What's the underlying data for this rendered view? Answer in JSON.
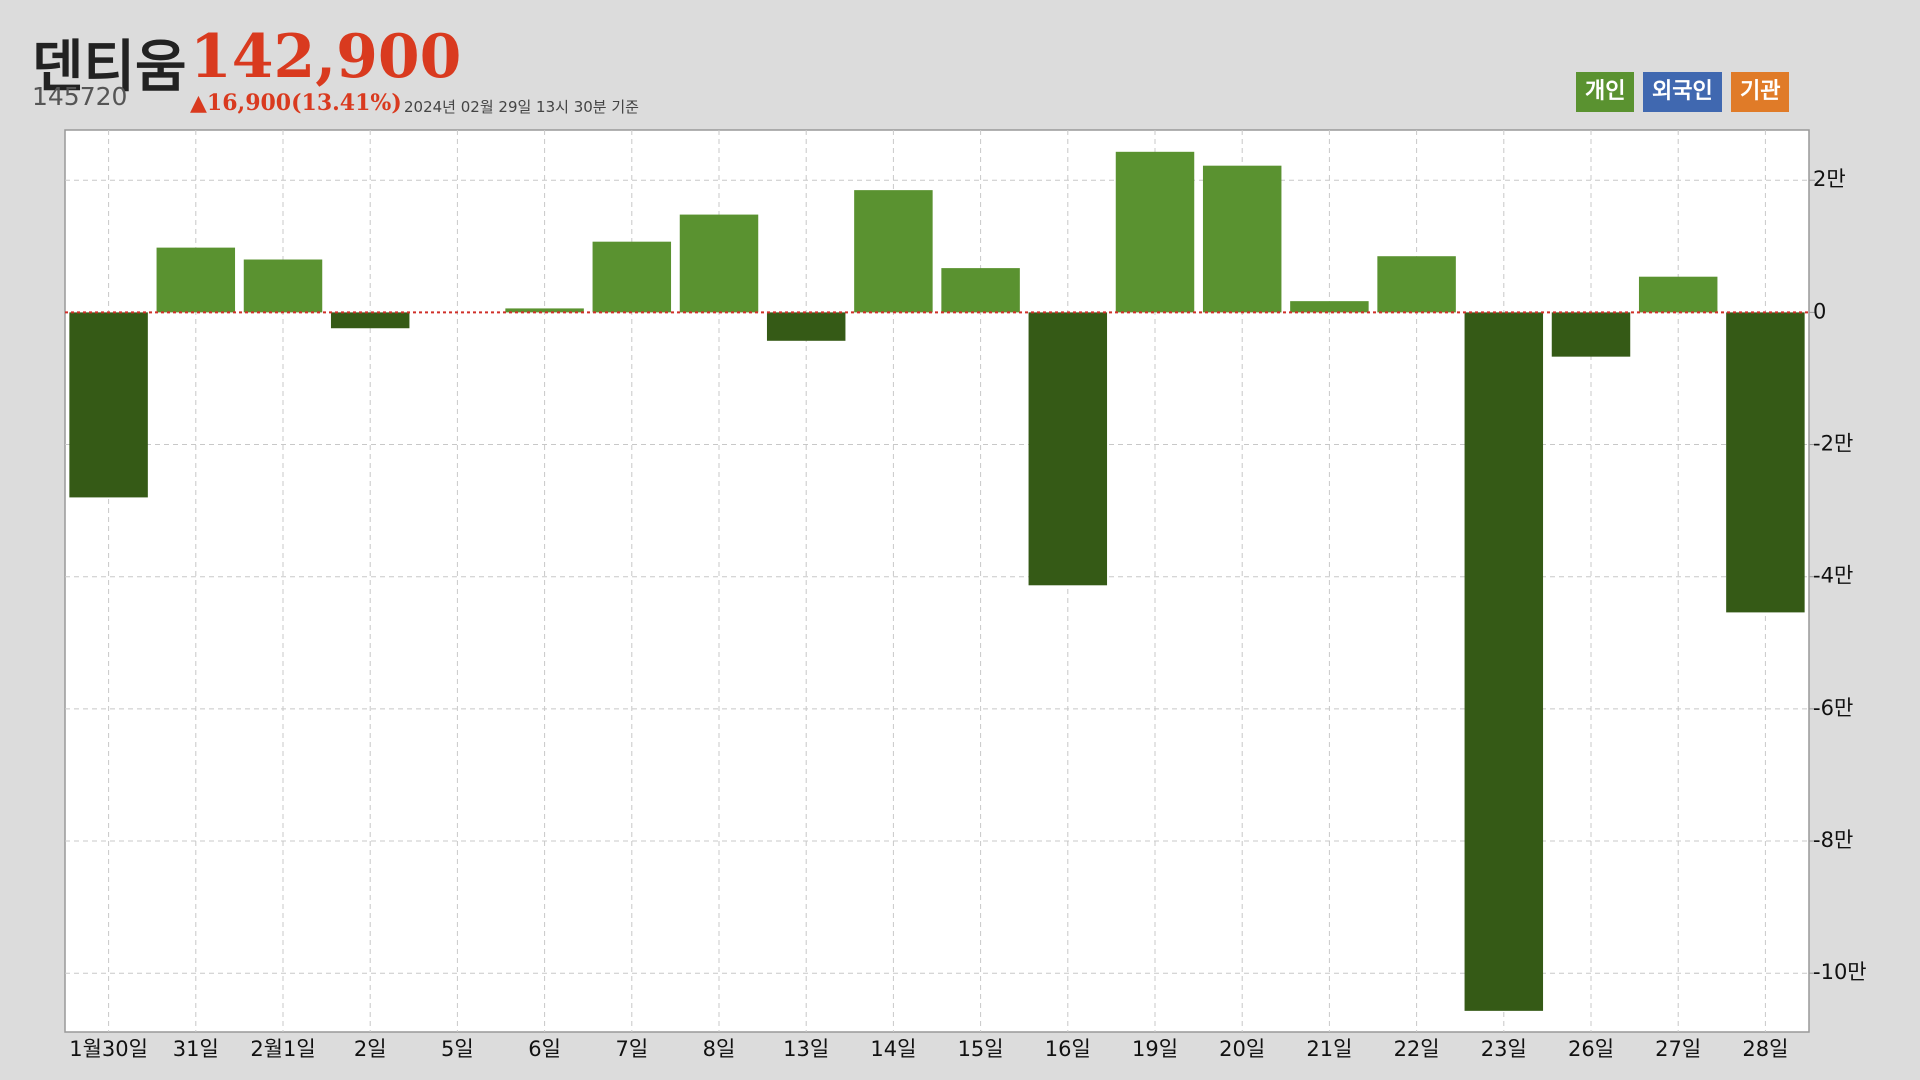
{
  "header": {
    "name": "덴티움",
    "price": "142,900",
    "code": "145720",
    "change": "▲16,900(13.41%)",
    "timestamp": "2024년 02월 29일 13시 30분 기준"
  },
  "chart_data": {
    "type": "bar",
    "legend": [
      {
        "name": "개인",
        "color": "#5a9230"
      },
      {
        "name": "외국인",
        "color": "#4068b0"
      },
      {
        "name": "기관",
        "color": "#e07b28"
      }
    ],
    "categories": [
      "1월30일",
      "31일",
      "2월1일",
      "2일",
      "5일",
      "6일",
      "7일",
      "8일",
      "13일",
      "14일",
      "15일",
      "16일",
      "19일",
      "20일",
      "21일",
      "22일",
      "23일",
      "26일",
      "27일",
      "28일"
    ],
    "series": [
      {
        "color": "#5a9230",
        "negative_color": "#355a16",
        "values": [
          -28000,
          9800,
          8000,
          -2400,
          0,
          600,
          10700,
          14800,
          -4300,
          18500,
          6700,
          -41300,
          24300,
          22200,
          1700,
          8500,
          -105700,
          -6700,
          5400,
          -45400
        ]
      }
    ],
    "ylim": [
      -108900,
      27600
    ],
    "yticks": [
      {
        "value": 20000,
        "label": "2만"
      },
      0,
      {
        "value": -20000,
        "label": "-2만"
      },
      {
        "value": -40000,
        "label": "-4만"
      },
      {
        "value": -60000,
        "label": "-6만"
      },
      {
        "value": -80000,
        "label": "-8만"
      },
      {
        "value": -100000,
        "label": "-10만"
      }
    ],
    "grid": true,
    "zero_line_color": "#d0302a"
  }
}
